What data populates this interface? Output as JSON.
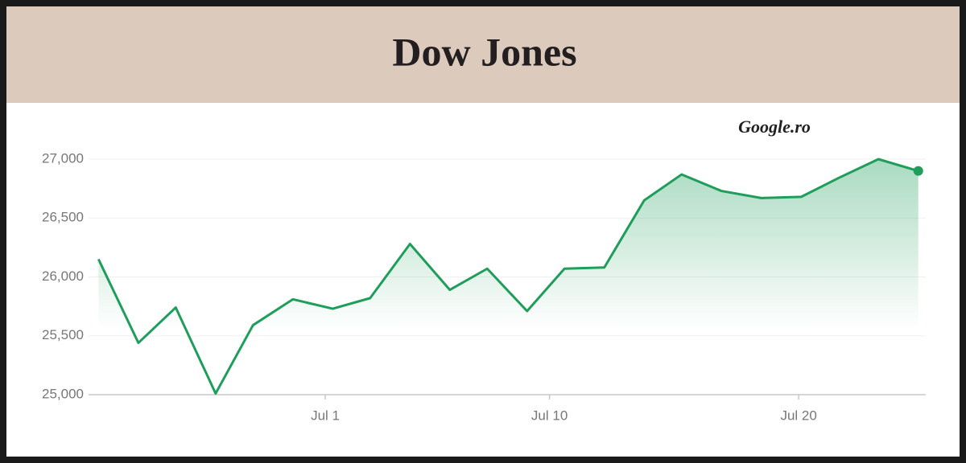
{
  "chart_data": {
    "type": "line",
    "title": "Dow Jones",
    "source": "Google.ro",
    "x": [
      -8.1,
      -6.5,
      -5.0,
      -3.4,
      -1.9,
      -0.3,
      1.3,
      2.8,
      4.4,
      6.0,
      7.5,
      9.1,
      10.6,
      12.2,
      13.8,
      15.3,
      16.9,
      18.5,
      20.1,
      21.6,
      23.2,
      24.8
    ],
    "series": [
      {
        "name": "Dow Jones",
        "color": "#1e9e5a",
        "values": [
          26150,
          25440,
          25740,
          25010,
          25590,
          25810,
          25730,
          25820,
          26280,
          25890,
          26070,
          25710,
          26070,
          26080,
          26650,
          26870,
          26730,
          26670,
          26680,
          26840,
          27000,
          26900
        ]
      }
    ],
    "xlim": [
      -8.5,
      25.1
    ],
    "xticks": [
      {
        "value": 1,
        "label": "Jul 1"
      },
      {
        "value": 10,
        "label": "Jul 10"
      },
      {
        "value": 20,
        "label": "Jul 20"
      }
    ],
    "ylim": [
      25000,
      27000
    ],
    "yticks": [
      {
        "value": 25000,
        "label": "25,000"
      },
      {
        "value": 25500,
        "label": "25,500"
      },
      {
        "value": 26000,
        "label": "26,000"
      },
      {
        "value": 26500,
        "label": "26,500"
      },
      {
        "value": 27000,
        "label": "27,000"
      }
    ],
    "grid": true,
    "area_fill": true,
    "end_marker": true
  }
}
